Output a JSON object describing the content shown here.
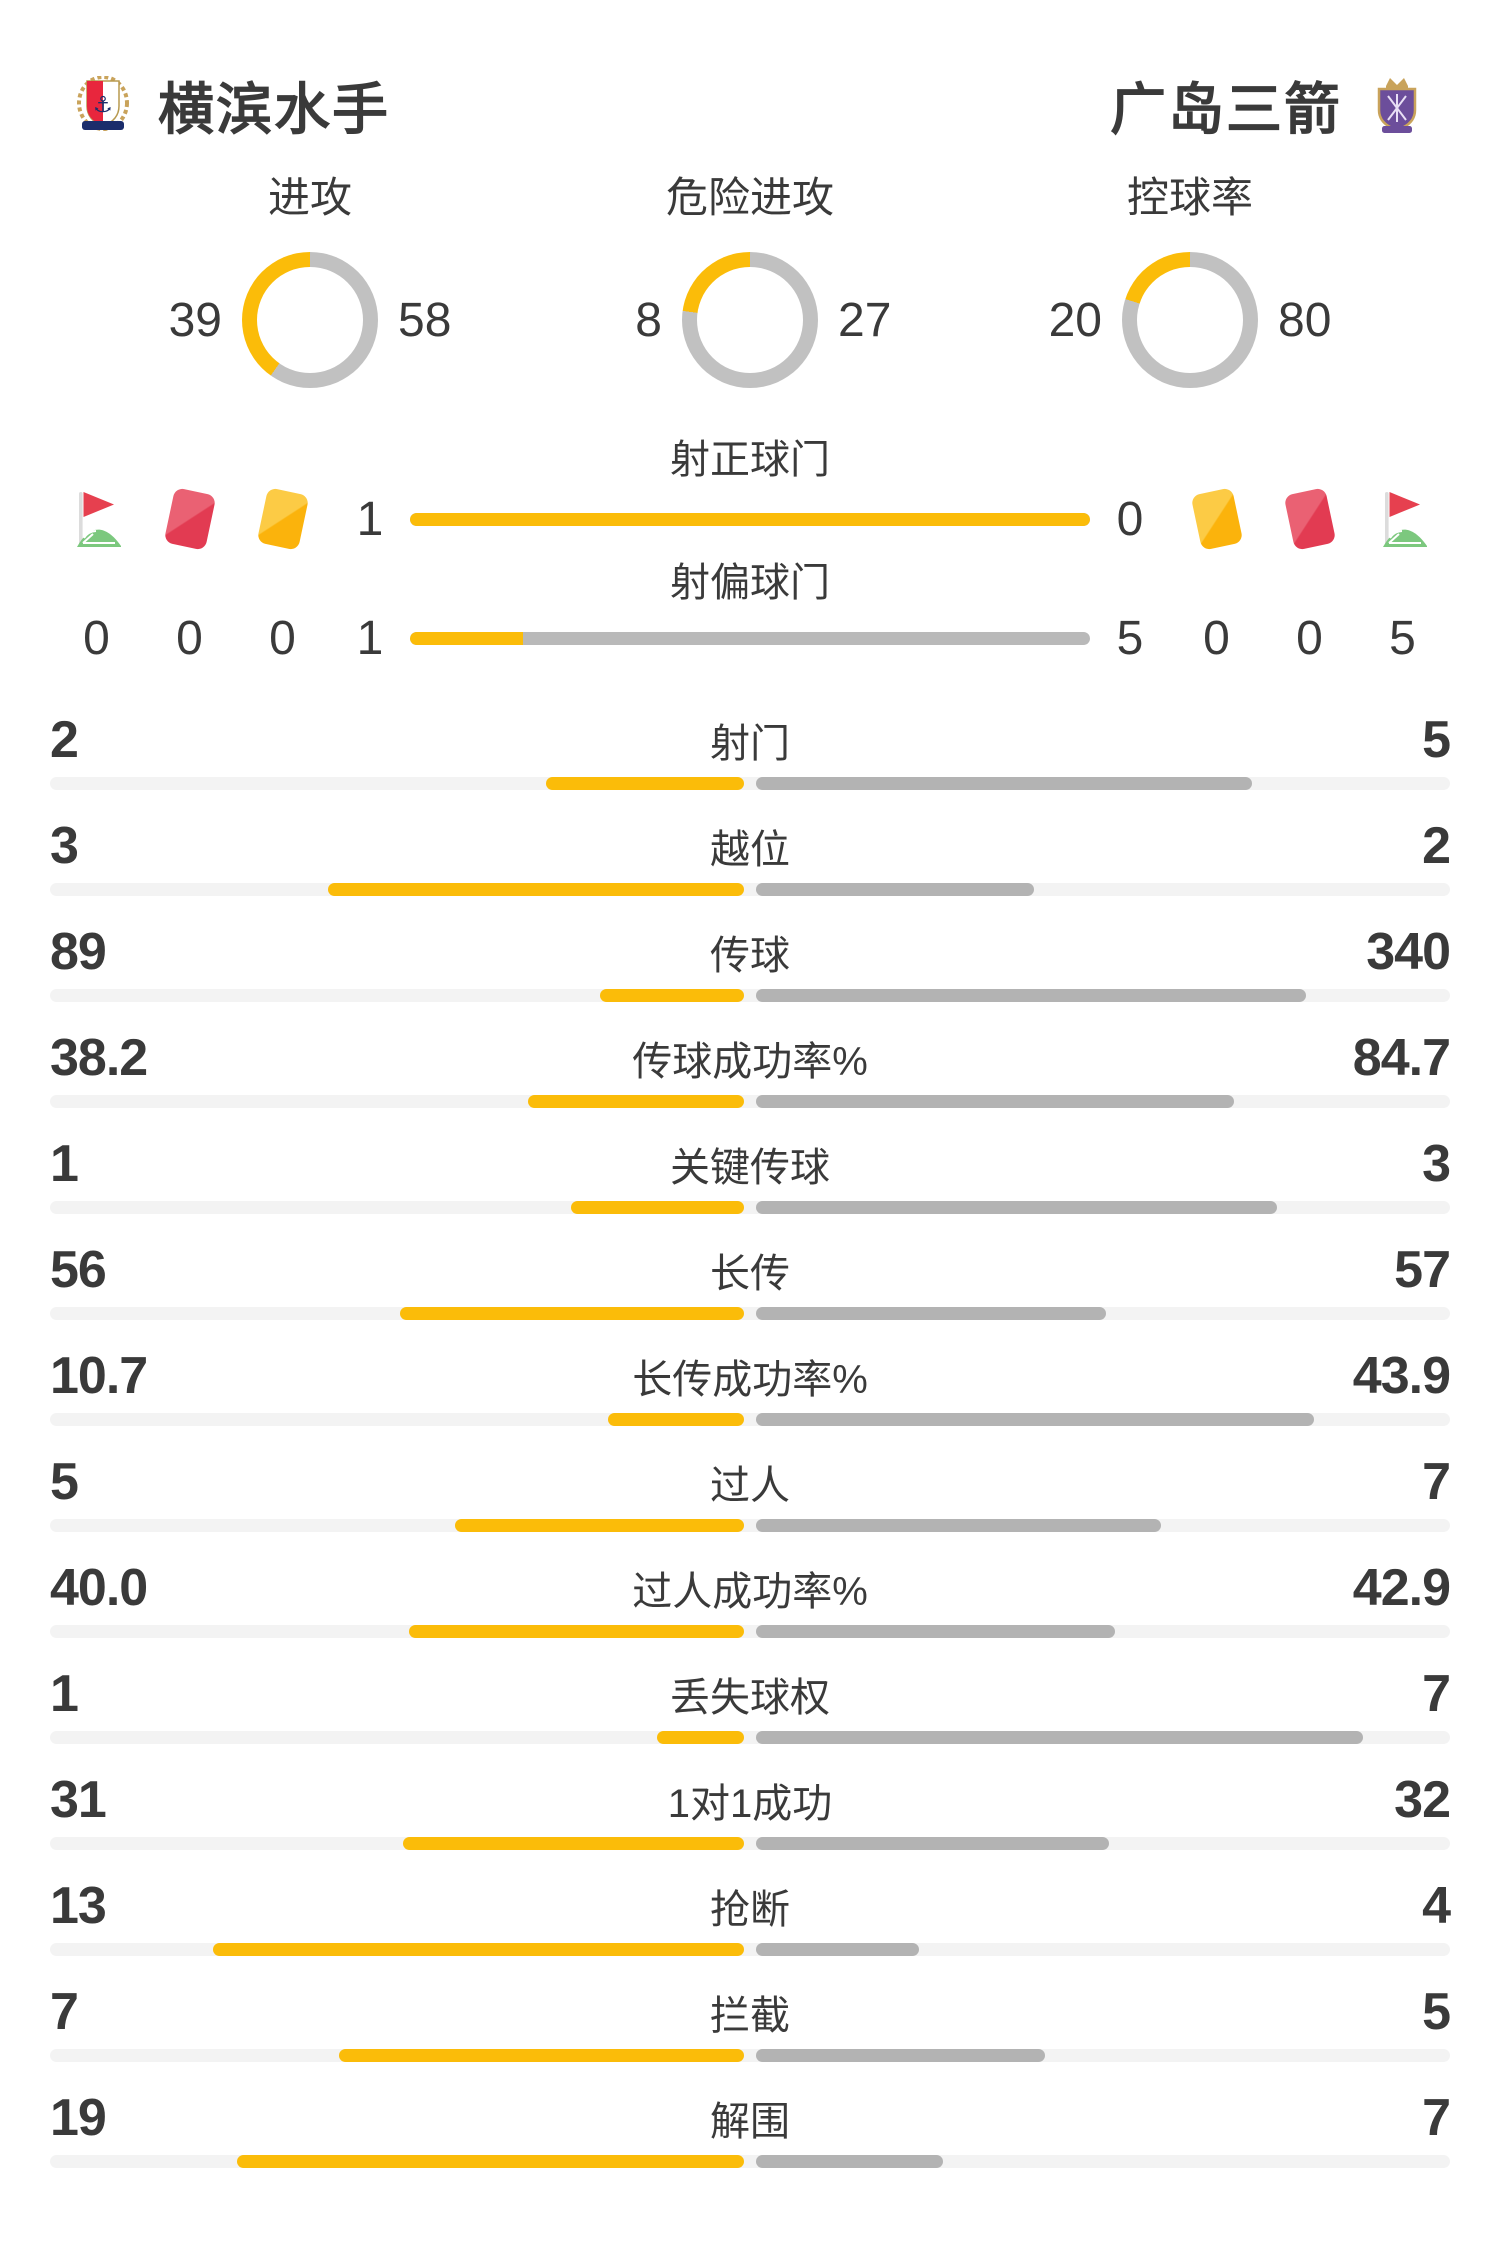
{
  "header": {
    "home_team": {
      "name": "横滨水手"
    },
    "away_team": {
      "name": "广岛三箭"
    }
  },
  "colors": {
    "home_accent": "#FBBC09",
    "away_bar_gray": "#B3B3B3",
    "donut_gray": "#C1C1C1",
    "track_gray": "#F3F3F3",
    "text": "#3A3A3A",
    "red_card": "#E23B52",
    "yellow_card": "#FBB30C",
    "flag_red": "#E6404F",
    "flag_green": "#7CC87E"
  },
  "donut_stats": [
    {
      "label": "进攻",
      "home": "39",
      "away": "58"
    },
    {
      "label": "危险进攻",
      "home": "8",
      "away": "27"
    },
    {
      "label": "控球率",
      "home": "20",
      "away": "80"
    }
  ],
  "discipline": {
    "home": [
      {
        "icon": "corner-flag",
        "count": "0"
      },
      {
        "icon": "red-card",
        "count": "0"
      },
      {
        "icon": "yellow-card",
        "count": "0"
      }
    ],
    "away": [
      {
        "icon": "yellow-card",
        "count": "0"
      },
      {
        "icon": "red-card",
        "count": "0"
      },
      {
        "icon": "corner-flag",
        "count": "5"
      }
    ]
  },
  "shot_stats": [
    {
      "label": "射正球门",
      "home": "1",
      "away": "0"
    },
    {
      "label": "射偏球门",
      "home": "1",
      "away": "5"
    }
  ],
  "stat_rows": [
    {
      "label": "射门",
      "home": "2",
      "away": "5"
    },
    {
      "label": "越位",
      "home": "3",
      "away": "2"
    },
    {
      "label": "传球",
      "home": "89",
      "away": "340"
    },
    {
      "label": "传球成功率%",
      "home": "38.2",
      "away": "84.7"
    },
    {
      "label": "关键传球",
      "home": "1",
      "away": "3"
    },
    {
      "label": "长传",
      "home": "56",
      "away": "57"
    },
    {
      "label": "长传成功率%",
      "home": "10.7",
      "away": "43.9"
    },
    {
      "label": "过人",
      "home": "5",
      "away": "7"
    },
    {
      "label": "过人成功率%",
      "home": "40.0",
      "away": "42.9"
    },
    {
      "label": "丢失球权",
      "home": "1",
      "away": "7"
    },
    {
      "label": "1对1成功",
      "home": "31",
      "away": "32"
    },
    {
      "label": "抢断",
      "home": "13",
      "away": "4"
    },
    {
      "label": "拦截",
      "home": "7",
      "away": "5"
    },
    {
      "label": "解围",
      "home": "19",
      "away": "7"
    }
  ]
}
